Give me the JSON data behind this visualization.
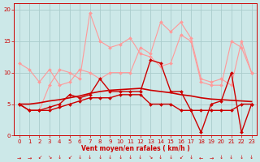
{
  "x": [
    0,
    1,
    2,
    3,
    4,
    5,
    6,
    7,
    8,
    9,
    10,
    11,
    12,
    13,
    14,
    15,
    16,
    17,
    18,
    19,
    20,
    21,
    22,
    23
  ],
  "line_rafales1": [
    11.5,
    10.5,
    8.5,
    10.5,
    8,
    8.5,
    10.5,
    10,
    9,
    10,
    10,
    10,
    14,
    13,
    18,
    16.5,
    18,
    15.5,
    9,
    8.5,
    9,
    8,
    15,
    10
  ],
  "line_rafales2": [
    5,
    4,
    4,
    8,
    10.5,
    10,
    9,
    19.5,
    15,
    14,
    14.5,
    15.5,
    13,
    12.5,
    11,
    11.5,
    16,
    15,
    8.5,
    8,
    8,
    15,
    14,
    10
  ],
  "line_moyen1": [
    5,
    4,
    4,
    4.5,
    5,
    6.5,
    6,
    6.5,
    9,
    7,
    7,
    7,
    7,
    12,
    11.5,
    7,
    7,
    4,
    0.5,
    5,
    5.5,
    10,
    0.5,
    5
  ],
  "line_trend": [
    5,
    5,
    5.2,
    5.5,
    5.7,
    6,
    6.3,
    6.7,
    7,
    7.2,
    7.3,
    7.4,
    7.5,
    7.2,
    7,
    6.8,
    6.5,
    6.3,
    6,
    5.8,
    5.7,
    5.6,
    5.5,
    5.4
  ],
  "line_moyen2": [
    5,
    4,
    4,
    4,
    4.5,
    5,
    5.5,
    6,
    6,
    6,
    6.5,
    6.5,
    6.5,
    5,
    5,
    5,
    4,
    4,
    4,
    4,
    4,
    4,
    5,
    5
  ],
  "directions": [
    "→",
    "→",
    "↙",
    "↘",
    "↓",
    "↙",
    "↓",
    "↓",
    "↓",
    "↓",
    "↓",
    "↓",
    "↓",
    "↘",
    "↓",
    "↓",
    "↙",
    "↓",
    "←",
    "→",
    "↓",
    "↓",
    "↓",
    "↓"
  ],
  "background": "#cce8e8",
  "grid_color": "#aacccc",
  "rafales_color": "#ff9999",
  "moyen_color": "#cc0000",
  "xlabel": "Vent moyen/en rafales ( km/h )",
  "ylim": [
    0,
    21
  ],
  "xlim": [
    -0.5,
    23.5
  ],
  "yticks": [
    0,
    5,
    10,
    15,
    20
  ],
  "xticks": [
    0,
    1,
    2,
    3,
    4,
    5,
    6,
    7,
    8,
    9,
    10,
    11,
    12,
    13,
    14,
    15,
    16,
    17,
    18,
    19,
    20,
    21,
    22,
    23
  ]
}
